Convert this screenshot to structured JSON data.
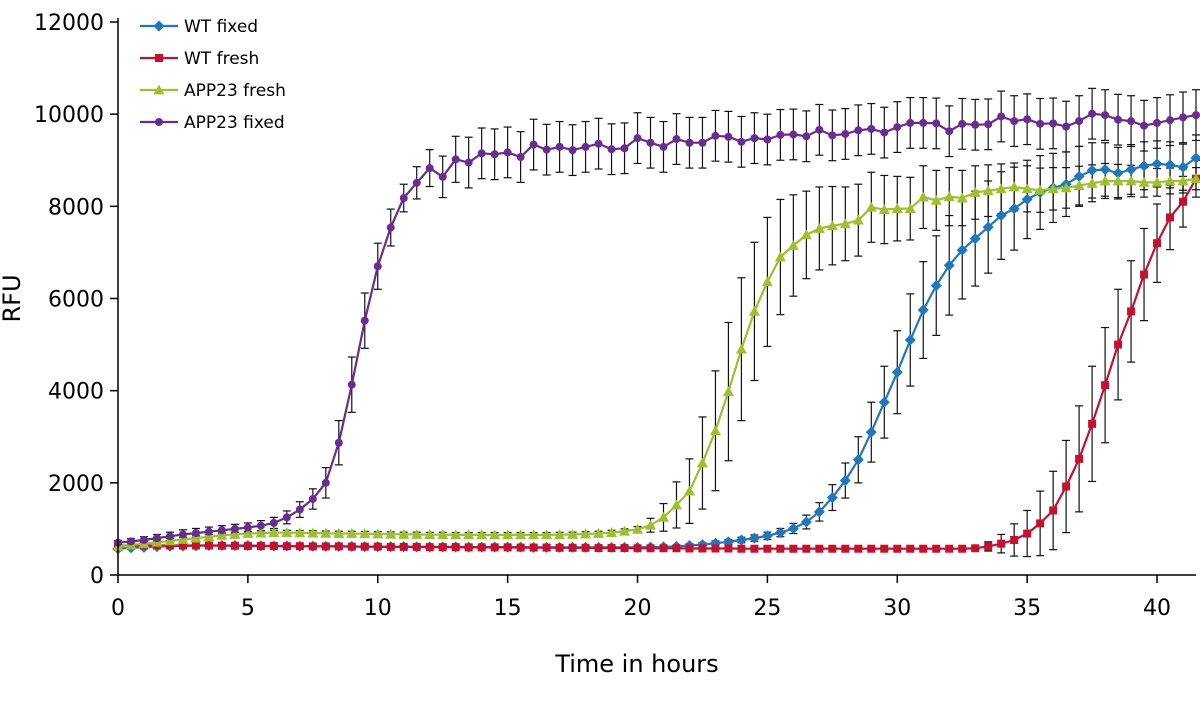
{
  "chart_data": {
    "type": "line",
    "title": "",
    "xlabel": "Time in hours",
    "ylabel": "RFU",
    "xlim": [
      0,
      41.5
    ],
    "ylim": [
      0,
      12000
    ],
    "xticks": [
      0,
      5,
      10,
      15,
      20,
      25,
      30,
      35,
      40
    ],
    "yticks": [
      0,
      2000,
      4000,
      6000,
      8000,
      10000,
      12000
    ],
    "grid": false,
    "legend_position": "top-left",
    "series": [
      {
        "name": "WT fixed",
        "color": "#1f77c0",
        "marker": "diamond",
        "x": [
          0,
          0.5,
          1,
          1.5,
          2,
          2.5,
          3,
          3.5,
          4,
          4.5,
          5,
          5.5,
          6,
          6.5,
          7,
          7.5,
          8,
          8.5,
          9,
          9.5,
          10,
          10.5,
          11,
          11.5,
          12,
          12.5,
          13,
          13.5,
          14,
          14.5,
          15,
          15.5,
          16,
          16.5,
          17,
          17.5,
          18,
          18.5,
          19,
          19.5,
          20,
          20.5,
          21,
          21.5,
          22,
          22.5,
          23,
          23.5,
          24,
          24.5,
          25,
          25.5,
          26,
          26.5,
          27,
          27.5,
          28,
          28.5,
          29,
          29.5,
          30,
          30.5,
          31,
          31.5,
          32,
          32.5,
          33,
          33.5,
          34,
          34.5,
          35,
          35.5,
          36,
          36.5,
          37,
          37.5,
          38,
          38.5,
          39,
          39.5,
          40,
          40.5,
          41,
          41.5
        ],
        "y": [
          570,
          590,
          600,
          615,
          625,
          630,
          635,
          640,
          640,
          640,
          640,
          635,
          630,
          630,
          625,
          625,
          620,
          620,
          620,
          615,
          615,
          615,
          615,
          610,
          610,
          610,
          610,
          605,
          605,
          605,
          605,
          605,
          600,
          600,
          600,
          600,
          600,
          600,
          600,
          600,
          600,
          605,
          610,
          620,
          640,
          660,
          690,
          720,
          760,
          800,
          850,
          920,
          1010,
          1150,
          1370,
          1680,
          2050,
          2500,
          3100,
          3750,
          4400,
          5100,
          5750,
          6280,
          6720,
          7050,
          7300,
          7550,
          7800,
          7950,
          8150,
          8300,
          8400,
          8480,
          8650,
          8780,
          8800,
          8720,
          8800,
          8880,
          8920,
          8900,
          8850,
          9050
        ],
        "error": [
          30,
          30,
          30,
          30,
          30,
          30,
          30,
          30,
          30,
          30,
          30,
          30,
          30,
          30,
          30,
          30,
          30,
          30,
          30,
          30,
          30,
          30,
          30,
          30,
          30,
          30,
          30,
          30,
          30,
          30,
          30,
          30,
          30,
          30,
          30,
          30,
          30,
          30,
          30,
          30,
          30,
          30,
          30,
          30,
          40,
          40,
          50,
          50,
          60,
          70,
          80,
          90,
          110,
          150,
          200,
          280,
          380,
          500,
          650,
          780,
          900,
          1000,
          1050,
          1080,
          1080,
          1060,
          1030,
          1000,
          950,
          900,
          850,
          800,
          750,
          700,
          650,
          600,
          580,
          560,
          540,
          520,
          500,
          500,
          500,
          500
        ]
      },
      {
        "name": "WT fresh",
        "color": "#c8102e",
        "marker": "square",
        "x": [
          0,
          0.5,
          1,
          1.5,
          2,
          2.5,
          3,
          3.5,
          4,
          4.5,
          5,
          5.5,
          6,
          6.5,
          7,
          7.5,
          8,
          8.5,
          9,
          9.5,
          10,
          10.5,
          11,
          11.5,
          12,
          12.5,
          13,
          13.5,
          14,
          14.5,
          15,
          15.5,
          16,
          16.5,
          17,
          17.5,
          18,
          18.5,
          19,
          19.5,
          20,
          20.5,
          21,
          21.5,
          22,
          22.5,
          23,
          23.5,
          24,
          24.5,
          25,
          25.5,
          26,
          26.5,
          27,
          27.5,
          28,
          28.5,
          29,
          29.5,
          30,
          30.5,
          31,
          31.5,
          32,
          32.5,
          33,
          33.5,
          34,
          34.5,
          35,
          35.5,
          36,
          36.5,
          37,
          37.5,
          38,
          38.5,
          39,
          39.5,
          40,
          40.5,
          41,
          41.5
        ],
        "y": [
          640,
          640,
          640,
          640,
          640,
          640,
          640,
          640,
          635,
          635,
          630,
          630,
          630,
          625,
          625,
          620,
          620,
          620,
          615,
          615,
          615,
          610,
          610,
          610,
          605,
          605,
          605,
          600,
          600,
          600,
          600,
          595,
          595,
          595,
          590,
          590,
          590,
          585,
          585,
          585,
          580,
          580,
          580,
          580,
          575,
          575,
          575,
          575,
          570,
          570,
          570,
          570,
          570,
          570,
          570,
          570,
          570,
          570,
          570,
          570,
          570,
          570,
          570,
          570,
          570,
          570,
          580,
          620,
          680,
          760,
          900,
          1120,
          1400,
          1920,
          2520,
          3280,
          4120,
          5000,
          5720,
          6520,
          7200,
          7760,
          8100,
          8600
        ],
        "error": [
          20,
          20,
          20,
          20,
          20,
          20,
          20,
          20,
          20,
          20,
          20,
          20,
          20,
          20,
          20,
          20,
          20,
          20,
          20,
          20,
          20,
          20,
          20,
          20,
          20,
          20,
          20,
          20,
          20,
          20,
          20,
          20,
          20,
          20,
          20,
          20,
          20,
          20,
          20,
          20,
          20,
          20,
          20,
          20,
          20,
          20,
          20,
          20,
          20,
          20,
          20,
          20,
          20,
          20,
          20,
          20,
          20,
          20,
          20,
          20,
          20,
          20,
          20,
          20,
          20,
          20,
          30,
          100,
          200,
          350,
          500,
          700,
          850,
          1000,
          1150,
          1250,
          1250,
          1200,
          1100,
          1000,
          850,
          700,
          550,
          400
        ]
      },
      {
        "name": "APP23 fresh",
        "color": "#9dc12b",
        "marker": "triangle",
        "x": [
          0,
          0.5,
          1,
          1.5,
          2,
          2.5,
          3,
          3.5,
          4,
          4.5,
          5,
          5.5,
          6,
          6.5,
          7,
          7.5,
          8,
          8.5,
          9,
          9.5,
          10,
          10.5,
          11,
          11.5,
          12,
          12.5,
          13,
          13.5,
          14,
          14.5,
          15,
          15.5,
          16,
          16.5,
          17,
          17.5,
          18,
          18.5,
          19,
          19.5,
          20,
          20.5,
          21,
          21.5,
          22,
          22.5,
          23,
          23.5,
          24,
          24.5,
          25,
          25.5,
          26,
          26.5,
          27,
          27.5,
          28,
          28.5,
          29,
          29.5,
          30,
          30.5,
          31,
          31.5,
          32,
          32.5,
          33,
          33.5,
          34,
          34.5,
          35,
          35.5,
          36,
          36.5,
          37,
          37.5,
          38,
          38.5,
          39,
          39.5,
          40,
          40.5,
          41,
          41.5
        ],
        "y": [
          620,
          650,
          680,
          710,
          740,
          770,
          800,
          830,
          860,
          880,
          900,
          910,
          920,
          920,
          915,
          910,
          905,
          900,
          900,
          895,
          890,
          885,
          880,
          880,
          875,
          875,
          870,
          870,
          870,
          870,
          870,
          870,
          870,
          870,
          875,
          880,
          890,
          900,
          920,
          950,
          990,
          1080,
          1250,
          1520,
          1820,
          2430,
          3130,
          3980,
          4900,
          5720,
          6360,
          6900,
          7150,
          7380,
          7520,
          7580,
          7620,
          7700,
          7980,
          7930,
          7950,
          7950,
          8200,
          8130,
          8210,
          8180,
          8300,
          8340,
          8380,
          8420,
          8380,
          8350,
          8380,
          8400,
          8450,
          8500,
          8550,
          8550,
          8550,
          8520,
          8520,
          8550,
          8550,
          8600
        ],
        "error": [
          50,
          50,
          50,
          50,
          50,
          50,
          50,
          50,
          50,
          50,
          50,
          50,
          50,
          50,
          50,
          50,
          50,
          50,
          50,
          50,
          50,
          50,
          50,
          50,
          50,
          50,
          50,
          50,
          50,
          50,
          50,
          50,
          50,
          50,
          50,
          50,
          50,
          50,
          50,
          50,
          60,
          150,
          300,
          500,
          700,
          1000,
          1300,
          1500,
          1550,
          1500,
          1400,
          1250,
          1100,
          950,
          900,
          850,
          800,
          780,
          760,
          740,
          700,
          680,
          680,
          650,
          630,
          600,
          580,
          560,
          540,
          520,
          500,
          480,
          460,
          440,
          420,
          400,
          380,
          360,
          340,
          320,
          300,
          280,
          260,
          240
        ]
      },
      {
        "name": "APP23 fixed",
        "color": "#6a2c91",
        "marker": "circle",
        "x": [
          0,
          0.5,
          1,
          1.5,
          2,
          2.5,
          3,
          3.5,
          4,
          4.5,
          5,
          5.5,
          6,
          6.5,
          7,
          7.5,
          8,
          8.5,
          9,
          9.5,
          10,
          10.5,
          11,
          11.5,
          12,
          12.5,
          13,
          13.5,
          14,
          14.5,
          15,
          15.5,
          16,
          16.5,
          17,
          17.5,
          18,
          18.5,
          19,
          19.5,
          20,
          20.5,
          21,
          21.5,
          22,
          22.5,
          23,
          23.5,
          24,
          24.5,
          25,
          25.5,
          26,
          26.5,
          27,
          27.5,
          28,
          28.5,
          29,
          29.5,
          30,
          30.5,
          31,
          31.5,
          32,
          32.5,
          33,
          33.5,
          34,
          34.5,
          35,
          35.5,
          36,
          36.5,
          37,
          37.5,
          38,
          38.5,
          39,
          39.5,
          40,
          40.5,
          41,
          41.5
        ],
        "y": [
          700,
          730,
          760,
          800,
          840,
          880,
          910,
          940,
          970,
          1000,
          1030,
          1070,
          1130,
          1250,
          1420,
          1650,
          2000,
          2870,
          4130,
          5520,
          6700,
          7540,
          8180,
          8510,
          8830,
          8640,
          9020,
          8950,
          9150,
          9130,
          9170,
          9070,
          9340,
          9230,
          9290,
          9220,
          9290,
          9360,
          9240,
          9260,
          9480,
          9380,
          9290,
          9460,
          9380,
          9380,
          9530,
          9510,
          9400,
          9480,
          9450,
          9550,
          9560,
          9520,
          9660,
          9540,
          9570,
          9650,
          9680,
          9600,
          9720,
          9810,
          9810,
          9800,
          9630,
          9790,
          9770,
          9780,
          9950,
          9850,
          9890,
          9790,
          9800,
          9730,
          9850,
          10010,
          9980,
          9880,
          9850,
          9750,
          9810,
          9870,
          9930,
          9980
        ],
        "error": [
          50,
          60,
          70,
          80,
          90,
          100,
          100,
          100,
          100,
          100,
          100,
          110,
          120,
          140,
          170,
          220,
          330,
          480,
          600,
          600,
          500,
          400,
          300,
          350,
          400,
          450,
          500,
          550,
          550,
          550,
          550,
          550,
          550,
          550,
          550,
          550,
          550,
          550,
          550,
          550,
          550,
          550,
          550,
          550,
          550,
          550,
          550,
          550,
          550,
          550,
          550,
          550,
          550,
          550,
          550,
          550,
          550,
          550,
          550,
          550,
          550,
          550,
          550,
          550,
          550,
          550,
          550,
          550,
          550,
          550,
          550,
          550,
          550,
          550,
          550,
          550,
          550,
          550,
          550,
          550,
          550,
          550,
          550,
          550
        ]
      }
    ]
  }
}
